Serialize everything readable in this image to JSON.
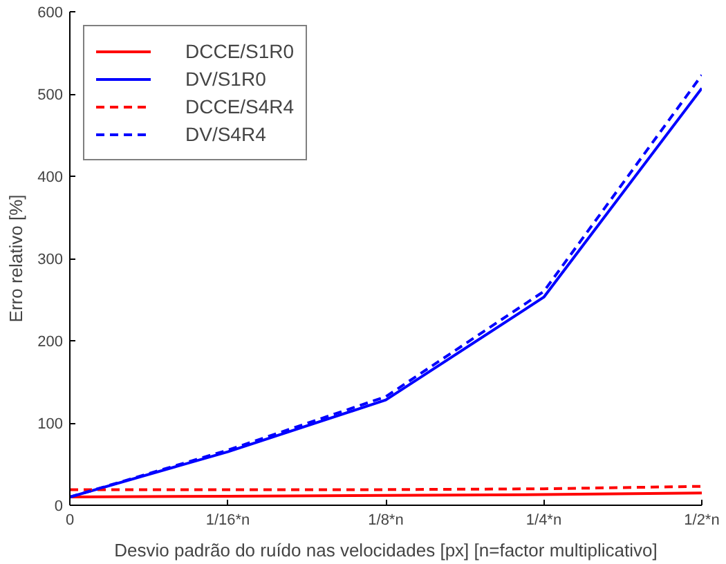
{
  "chart_data": {
    "type": "line",
    "xlabel": "Desvio padrão do ruído nas velocidades [px] [n=factor multiplicativo]",
    "ylabel": "Erro relativo [%]",
    "categories": [
      "0",
      "1/16*n",
      "1/8*n",
      "1/4*n",
      "1/2*n"
    ],
    "ylim": [
      0,
      600
    ],
    "yticks": [
      0,
      100,
      200,
      300,
      400,
      500,
      600
    ],
    "grid": false,
    "legend": "top left",
    "marker": "none",
    "series": [
      {
        "name": "DCCE/S1R0",
        "color": "#ff0000",
        "line_style": "solid",
        "values": [
          10,
          11,
          12,
          13,
          15
        ]
      },
      {
        "name": "DV/S1R0",
        "color": "#0000ff",
        "line_style": "solid",
        "values": [
          10,
          65,
          128,
          253,
          507
        ]
      },
      {
        "name": "DCCE/S4R4",
        "color": "#ff0000",
        "line_style": "dashed",
        "values": [
          19,
          19,
          19,
          20,
          23
        ]
      },
      {
        "name": "DV/S4R4",
        "color": "#0000ff",
        "line_style": "dashed",
        "values": [
          10,
          67,
          132,
          260,
          523
        ]
      }
    ]
  }
}
